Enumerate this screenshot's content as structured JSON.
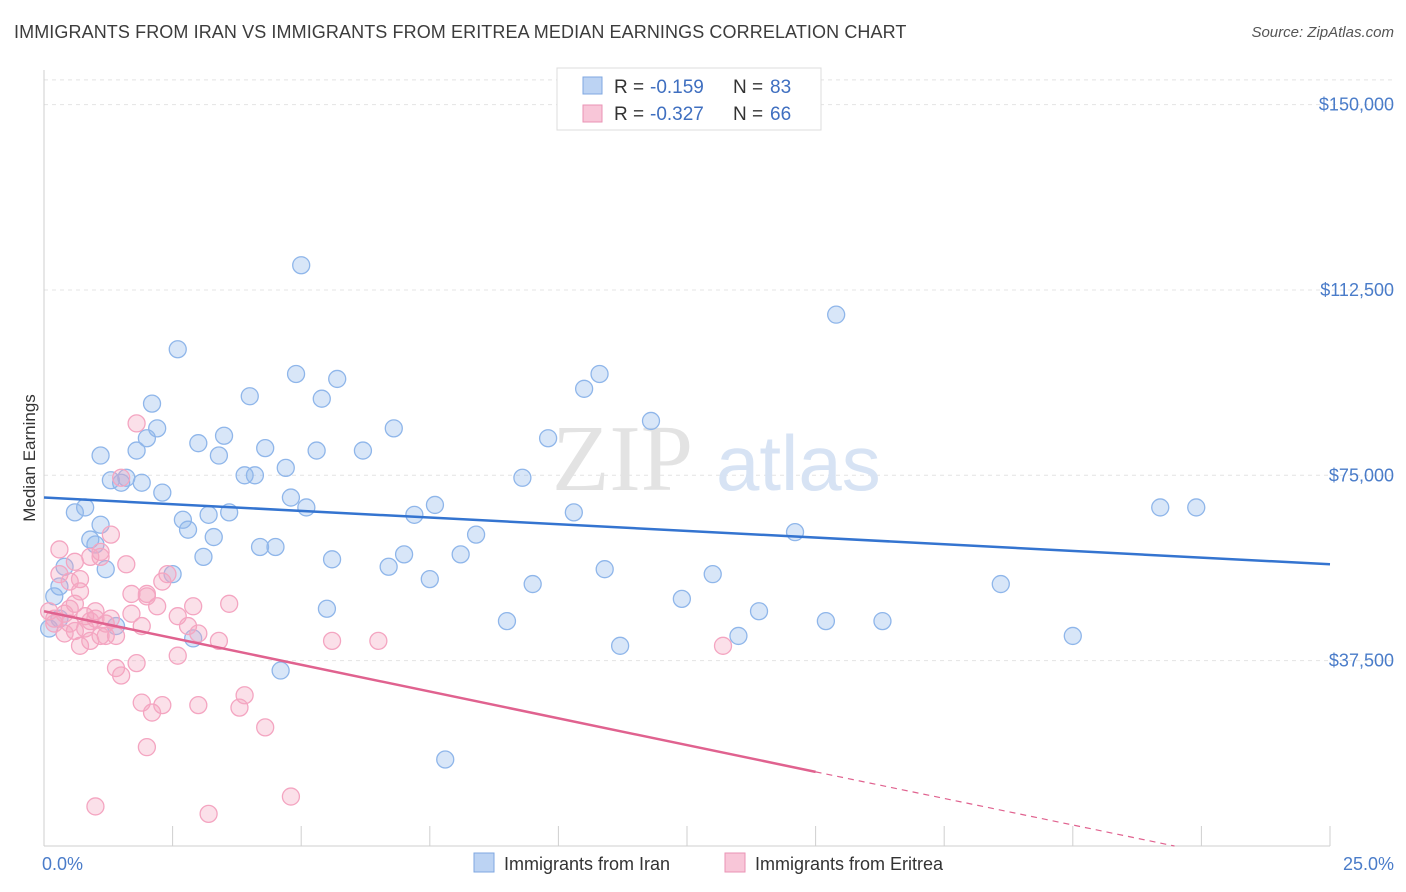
{
  "title": "IMMIGRANTS FROM IRAN VS IMMIGRANTS FROM ERITREA MEDIAN EARNINGS CORRELATION CHART",
  "source": "Source: ZipAtlas.com",
  "watermark": {
    "zip": "ZIP",
    "atlas": "atlas"
  },
  "legend": {
    "r_label": "R =",
    "n_label": "N =",
    "items": [
      {
        "r": "-0.159",
        "n": "83"
      },
      {
        "r": "-0.327",
        "n": "66"
      }
    ]
  },
  "chart_data": {
    "type": "scatter",
    "ylabel": "Median Earnings",
    "xlim": [
      0,
      25
    ],
    "ylim": [
      0,
      157000
    ],
    "x_tick_labels": [
      "0.0%",
      "25.0%"
    ],
    "y_ticks": [
      37500,
      75000,
      112500,
      150000
    ],
    "y_tick_labels": [
      "$37,500",
      "$75,000",
      "$112,500",
      "$150,000"
    ],
    "grid": true,
    "legend_position": "top-center",
    "series": [
      {
        "name": "Immigrants from Iran",
        "color": "#8fb6ea",
        "line_color": "#3474d0",
        "trend": {
          "x": [
            0,
            25
          ],
          "y": [
            70500,
            57000
          ]
        },
        "points": [
          [
            0.2,
            50500
          ],
          [
            0.3,
            52500
          ],
          [
            0.4,
            56500
          ],
          [
            0.6,
            67500
          ],
          [
            0.8,
            68500
          ],
          [
            0.9,
            62000
          ],
          [
            1.0,
            61000
          ],
          [
            1.1,
            65000
          ],
          [
            1.1,
            79000
          ],
          [
            1.3,
            74000
          ],
          [
            1.4,
            44500
          ],
          [
            1.5,
            73500
          ],
          [
            1.6,
            74500
          ],
          [
            1.8,
            80000
          ],
          [
            1.9,
            73500
          ],
          [
            2.0,
            82500
          ],
          [
            2.1,
            89500
          ],
          [
            2.2,
            84500
          ],
          [
            2.3,
            71500
          ],
          [
            2.5,
            55000
          ],
          [
            2.6,
            100500
          ],
          [
            2.7,
            66000
          ],
          [
            2.8,
            64000
          ],
          [
            2.9,
            42000
          ],
          [
            3.0,
            81500
          ],
          [
            3.1,
            58500
          ],
          [
            3.2,
            67000
          ],
          [
            3.3,
            62500
          ],
          [
            3.4,
            79000
          ],
          [
            3.5,
            83000
          ],
          [
            3.6,
            67500
          ],
          [
            3.9,
            75000
          ],
          [
            4.0,
            91000
          ],
          [
            4.1,
            75000
          ],
          [
            4.2,
            60500
          ],
          [
            4.3,
            80500
          ],
          [
            4.5,
            60500
          ],
          [
            4.6,
            35500
          ],
          [
            4.7,
            76500
          ],
          [
            4.8,
            70500
          ],
          [
            4.9,
            95500
          ],
          [
            5.0,
            117500
          ],
          [
            5.1,
            68500
          ],
          [
            5.3,
            80000
          ],
          [
            5.4,
            90500
          ],
          [
            5.5,
            48000
          ],
          [
            5.6,
            58000
          ],
          [
            5.7,
            94500
          ],
          [
            6.2,
            80000
          ],
          [
            6.7,
            56500
          ],
          [
            6.8,
            84500
          ],
          [
            7.0,
            59000
          ],
          [
            7.2,
            67000
          ],
          [
            7.5,
            54000
          ],
          [
            7.6,
            69000
          ],
          [
            7.8,
            17500
          ],
          [
            8.1,
            59000
          ],
          [
            8.4,
            63000
          ],
          [
            9.0,
            45500
          ],
          [
            9.3,
            74500
          ],
          [
            9.5,
            53000
          ],
          [
            9.8,
            82500
          ],
          [
            10.3,
            67500
          ],
          [
            10.5,
            92500
          ],
          [
            10.8,
            95500
          ],
          [
            10.9,
            56000
          ],
          [
            11.2,
            40500
          ],
          [
            11.8,
            86000
          ],
          [
            12.4,
            50000
          ],
          [
            13.0,
            55000
          ],
          [
            13.5,
            42500
          ],
          [
            13.9,
            47500
          ],
          [
            14.6,
            63500
          ],
          [
            15.2,
            45500
          ],
          [
            15.4,
            107500
          ],
          [
            16.3,
            45500
          ],
          [
            18.6,
            53000
          ],
          [
            20.0,
            42500
          ],
          [
            21.7,
            68500
          ],
          [
            22.4,
            68500
          ],
          [
            0.1,
            44000
          ],
          [
            0.3,
            46000
          ],
          [
            1.2,
            56000
          ]
        ]
      },
      {
        "name": "Immigrants from Eritrea",
        "color": "#f4a5c1",
        "line_color": "#e0628f",
        "trend": {
          "x": [
            0,
            15
          ],
          "y": [
            47500,
            15000
          ]
        },
        "trend_dashed": {
          "x": [
            15,
            25
          ],
          "y": [
            15000,
            -6500
          ]
        },
        "points": [
          [
            0.1,
            47500
          ],
          [
            0.2,
            45000
          ],
          [
            0.3,
            55000
          ],
          [
            0.3,
            60000
          ],
          [
            0.4,
            47000
          ],
          [
            0.5,
            45000
          ],
          [
            0.5,
            53500
          ],
          [
            0.6,
            43500
          ],
          [
            0.6,
            49000
          ],
          [
            0.7,
            51500
          ],
          [
            0.7,
            54000
          ],
          [
            0.8,
            46500
          ],
          [
            0.8,
            44000
          ],
          [
            0.9,
            58500
          ],
          [
            0.9,
            41500
          ],
          [
            1.0,
            46000
          ],
          [
            1.0,
            47500
          ],
          [
            1.1,
            59500
          ],
          [
            1.1,
            58500
          ],
          [
            1.2,
            45000
          ],
          [
            1.2,
            42500
          ],
          [
            1.3,
            46000
          ],
          [
            1.3,
            63000
          ],
          [
            1.4,
            42500
          ],
          [
            1.4,
            36000
          ],
          [
            1.5,
            34500
          ],
          [
            1.6,
            57000
          ],
          [
            1.7,
            51000
          ],
          [
            1.7,
            47000
          ],
          [
            1.8,
            85500
          ],
          [
            1.9,
            44500
          ],
          [
            1.9,
            29000
          ],
          [
            2.0,
            50500
          ],
          [
            2.0,
            51000
          ],
          [
            2.0,
            20000
          ],
          [
            2.1,
            27000
          ],
          [
            2.2,
            48500
          ],
          [
            2.3,
            28500
          ],
          [
            2.3,
            53500
          ],
          [
            2.4,
            55000
          ],
          [
            2.6,
            46500
          ],
          [
            2.8,
            44500
          ],
          [
            2.9,
            48500
          ],
          [
            3.0,
            28500
          ],
          [
            3.2,
            6500
          ],
          [
            3.4,
            41500
          ],
          [
            3.6,
            49000
          ],
          [
            3.8,
            28000
          ],
          [
            3.9,
            30500
          ],
          [
            4.3,
            24000
          ],
          [
            4.8,
            10000
          ],
          [
            5.6,
            41500
          ],
          [
            6.5,
            41500
          ],
          [
            13.2,
            40500
          ],
          [
            1.0,
            8000
          ],
          [
            0.9,
            45500
          ],
          [
            0.4,
            43000
          ],
          [
            0.6,
            57500
          ],
          [
            1.5,
            74500
          ],
          [
            0.2,
            46000
          ],
          [
            0.5,
            48000
          ],
          [
            1.8,
            37000
          ],
          [
            2.6,
            38500
          ],
          [
            3.0,
            43000
          ],
          [
            1.1,
            42500
          ],
          [
            0.7,
            40500
          ]
        ]
      }
    ]
  }
}
